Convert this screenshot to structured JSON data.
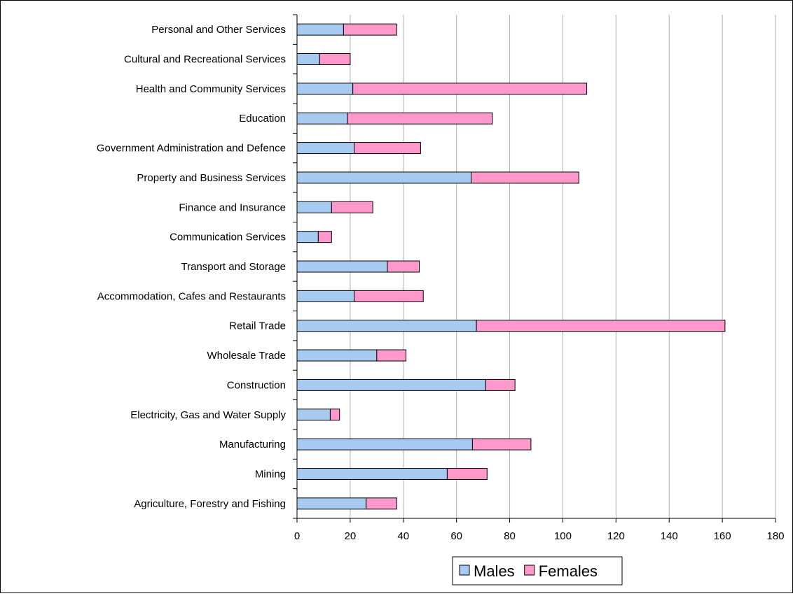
{
  "chart_data": {
    "type": "bar",
    "orientation": "horizontal",
    "stacked": true,
    "categories": [
      "Personal and Other Services",
      "Cultural and Recreational Services",
      "Health and Community Services",
      "Education",
      "Government Administration and Defence",
      "Property and Business Services",
      "Finance and Insurance",
      "Communication Services",
      "Transport and Storage",
      "Accommodation, Cafes and Restaurants",
      "Retail Trade",
      "Wholesale Trade",
      "Construction",
      "Electricity, Gas and Water Supply",
      "Manufacturing",
      "Mining",
      "Agriculture, Forestry and Fishing"
    ],
    "series": [
      {
        "name": "Males",
        "color": "#a6caf0",
        "values": [
          17.5,
          8.5,
          21,
          19,
          21.5,
          65.5,
          13,
          8,
          34,
          21.5,
          67.5,
          30,
          71,
          12.5,
          66,
          56.5,
          26
        ]
      },
      {
        "name": "Females",
        "color": "#ff99cc",
        "values": [
          20,
          11.5,
          88,
          54.5,
          25,
          40.5,
          15.5,
          5,
          12,
          26,
          93.5,
          11,
          11,
          3.5,
          22,
          15,
          11.5
        ]
      }
    ],
    "xlim": [
      0,
      180
    ],
    "xticks": [
      "0",
      "20",
      "40",
      "60",
      "80",
      "100",
      "120",
      "140",
      "160",
      "180"
    ],
    "grid": true,
    "legend_position": "bottom"
  }
}
